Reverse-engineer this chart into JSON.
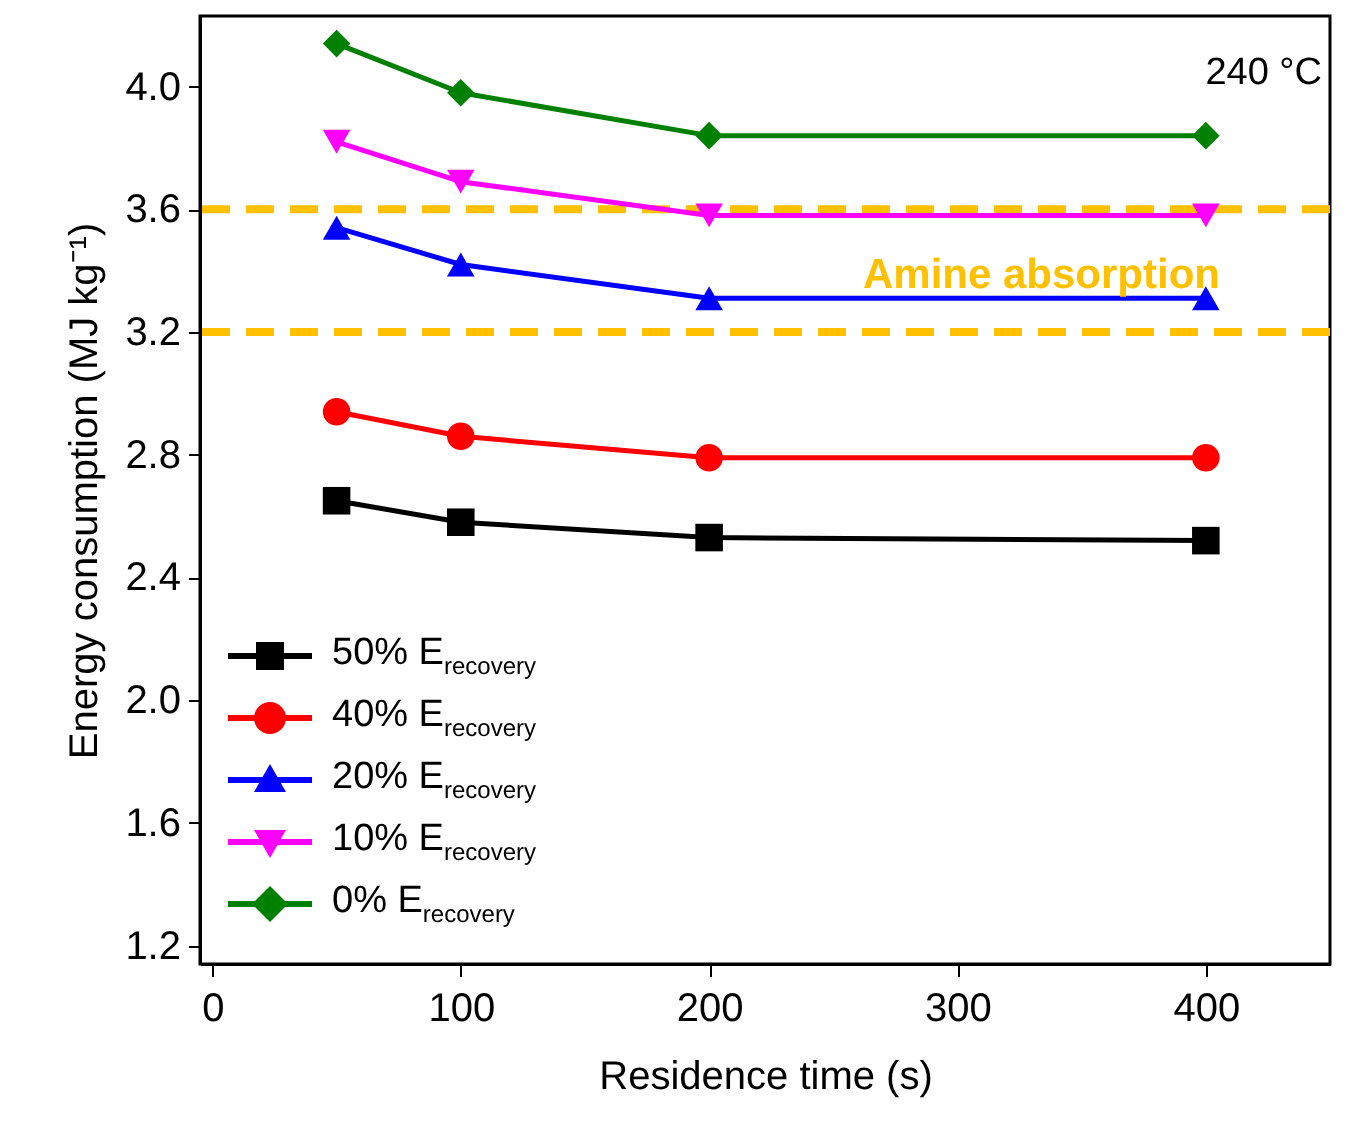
{
  "chart_data": {
    "type": "line",
    "xlabel": "Residence time (s)",
    "ylabel": "Energy consumption (MJ kg⁻¹)",
    "x": [
      50,
      100,
      200,
      400
    ],
    "xlim": [
      -5,
      450
    ],
    "xticks": [
      0,
      100,
      200,
      300,
      400
    ],
    "ylim": [
      1.14,
      4.23
    ],
    "yticks": [
      1.2,
      1.6,
      {
        "value": 2,
        "label": "2.0"
      },
      2.4,
      2.8,
      3.2,
      3.6,
      {
        "value": 4,
        "label": "4.0"
      }
    ],
    "grid": false,
    "legend": "bottom left",
    "line_style": "solid",
    "series": [
      {
        "name": "50% E$_{recovery}$",
        "color": "#000000",
        "marker": "square",
        "values": [
          2.65,
          2.58,
          2.53,
          2.52
        ]
      },
      {
        "name": "40% E$_{recovery}$",
        "color": "#ff0000",
        "marker": "circle",
        "values": [
          2.94,
          2.86,
          2.79,
          2.79
        ]
      },
      {
        "name": "20% E$_{recovery}$",
        "color": "#0000ff",
        "marker": "triangle",
        "values": [
          3.54,
          3.42,
          3.31,
          3.31
        ]
      },
      {
        "name": "10% E$_{recovery}$",
        "color": "#ff00ff",
        "marker": "triangle-down",
        "values": [
          3.82,
          3.69,
          3.58,
          3.58
        ]
      },
      {
        "name": "0% E$_{recovery}$",
        "color": "#008000",
        "marker": "diamond",
        "values": [
          4.14,
          3.98,
          3.84,
          3.84
        ]
      }
    ],
    "ref_lines": [
      {
        "axis": "y",
        "value": 3.6,
        "color": "#ffc000",
        "line_style": "dashed"
      },
      {
        "axis": "y",
        "value": 3.2,
        "color": "#ffc000",
        "line_style": "dashed"
      }
    ],
    "annotations": [
      "Amine absorption",
      "240 °C"
    ]
  }
}
